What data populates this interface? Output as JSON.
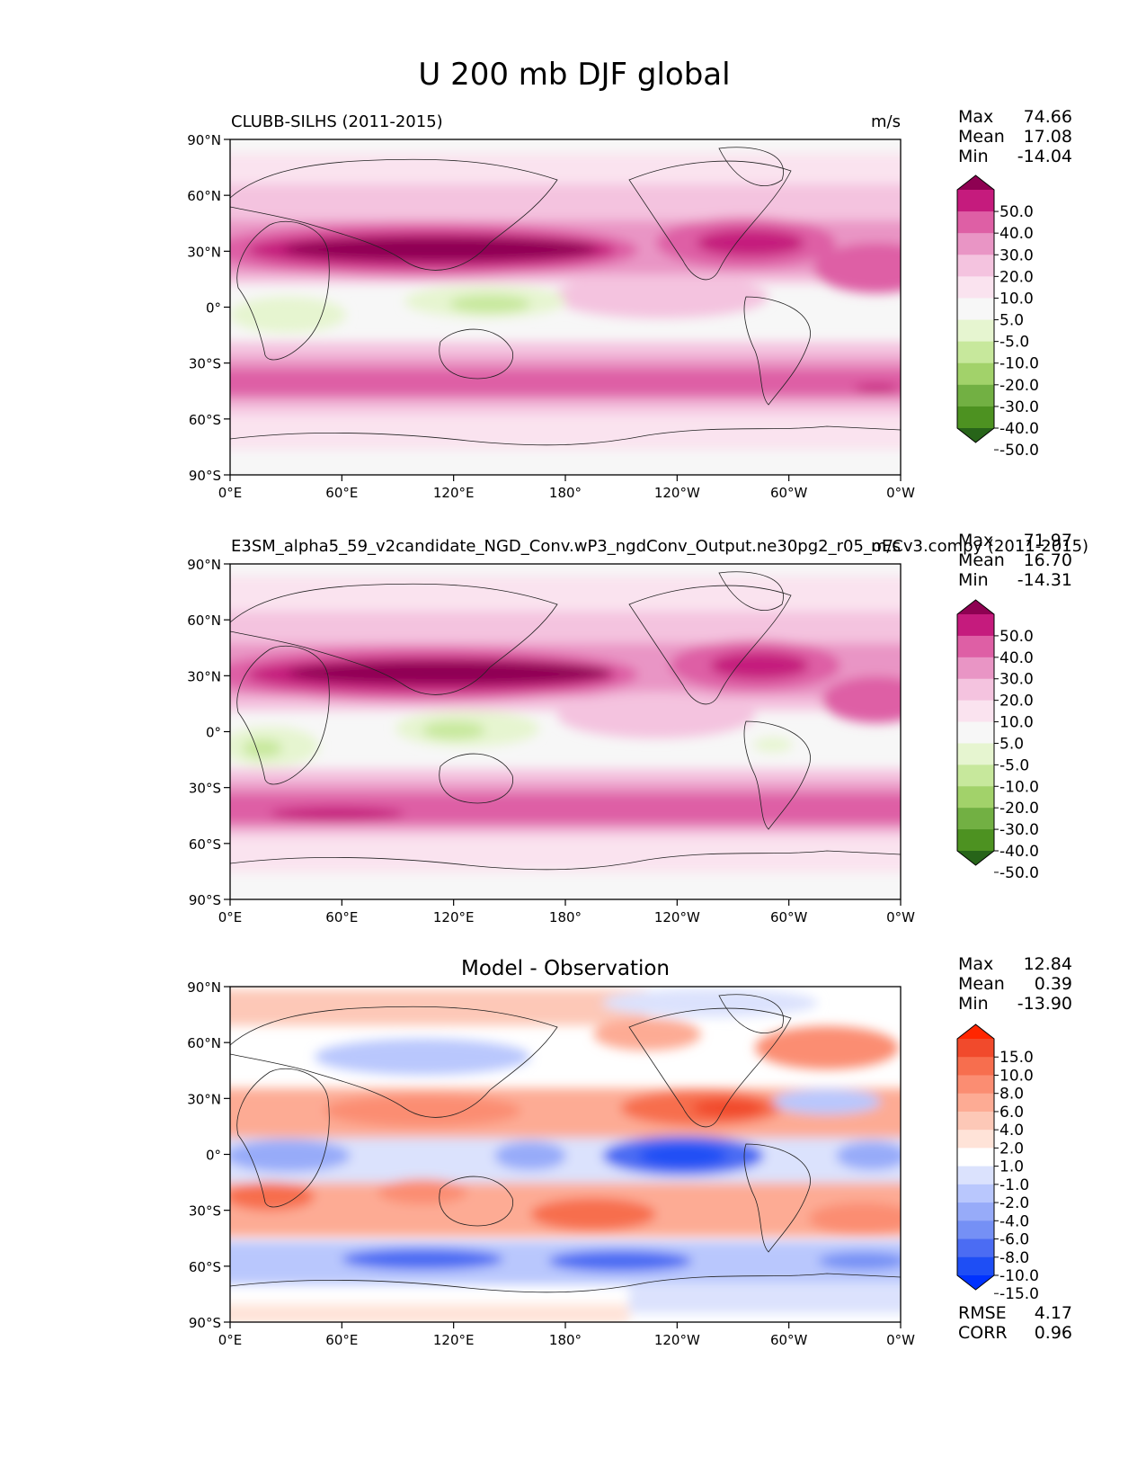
{
  "figure_title": "U 200 mb DJF global",
  "units": "m/s",
  "stat_labels": {
    "max": "Max",
    "mean": "Mean",
    "min": "Min",
    "rmse": "RMSE",
    "corr": "CORR"
  },
  "lat_ticks": [
    "90°N",
    "60°N",
    "30°N",
    "0°",
    "30°S",
    "60°S",
    "90°S"
  ],
  "lon_ticks": [
    "0°E",
    "60°E",
    "120°E",
    "180°",
    "120°W",
    "60°W",
    "0°W"
  ],
  "levels_main": [
    "50.0",
    "40.0",
    "30.0",
    "20.0",
    "10.0",
    "5.0",
    "-5.0",
    "-10.0",
    "-20.0",
    "-30.0",
    "-40.0",
    "-50.0"
  ],
  "levels_diff": [
    "15.0",
    "10.0",
    "8.0",
    "6.0",
    "4.0",
    "2.0",
    "1.0",
    "-1.0",
    "-2.0",
    "-4.0",
    "-6.0",
    "-8.0",
    "-10.0",
    "-15.0"
  ],
  "colors_main": [
    "#8e0152",
    "#c51b7d",
    "#de5fa5",
    "#e995c5",
    "#f4c3df",
    "#fae3ef",
    "#f7f7f7",
    "#e6f5d0",
    "#c7e89c",
    "#a2d26a",
    "#72b043",
    "#4d9221",
    "#276419"
  ],
  "colors_diff": [
    "#ff2600",
    "#f14a2c",
    "#f76e4e",
    "#fb8d72",
    "#fdab94",
    "#fdc8b7",
    "#ffe3d8",
    "#ffffff",
    "#dbe2fd",
    "#b9c7fd",
    "#97abf9",
    "#7590f5",
    "#4b6cf3",
    "#1e4ef5",
    "#0032ff"
  ],
  "chart_data": [
    {
      "type": "contourf-map",
      "title": "CLUBB-SILHS (2011-2015)",
      "units": "m/s",
      "stats": {
        "max": "74.66",
        "mean": "17.08",
        "min": "-14.04"
      },
      "xlim": [
        0,
        360
      ],
      "ylim": [
        -90,
        90
      ]
    },
    {
      "type": "contourf-map",
      "title": "E3SM_alpha5_59_v2candidate_NGD_Conv.wP3_ngdConv_Output.ne30pg2_r05_oECv3.compy (2011-2015)",
      "units": "m/s",
      "stats": {
        "max": "71.97",
        "mean": "16.70",
        "min": "-14.31"
      },
      "xlim": [
        0,
        360
      ],
      "ylim": [
        -90,
        90
      ]
    },
    {
      "type": "contourf-map",
      "title": "Model - Observation",
      "stats": {
        "max": "12.84",
        "mean": "0.39",
        "min": "-13.90",
        "rmse": "4.17",
        "corr": "0.96"
      },
      "xlim": [
        0,
        360
      ],
      "ylim": [
        -90,
        90
      ]
    }
  ]
}
